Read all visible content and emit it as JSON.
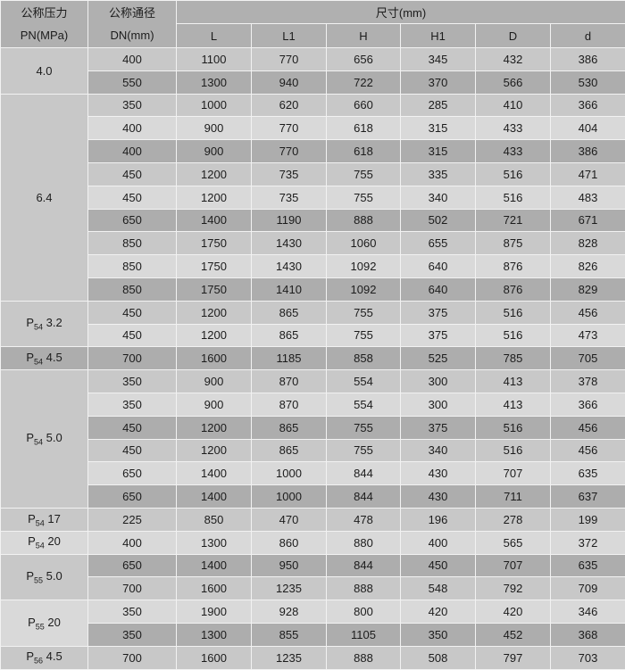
{
  "colors": {
    "header_bg": "#b0b0b0",
    "row_light": "#d9d9d9",
    "row_medium": "#c8c8c8",
    "row_dark": "#adadad",
    "gridline": "#f2f2f2",
    "text": "#1c1c1c"
  },
  "header": {
    "pressure_line1": "公称压力",
    "pressure_line2": "PN(MPa)",
    "diameter_line1": "公称通径",
    "diameter_line2": "DN(mm)",
    "size_label": "尺寸(mm)",
    "size_columns": [
      "L",
      "L1",
      "H",
      "H1",
      "D",
      "d"
    ]
  },
  "groups": [
    {
      "pn": {
        "text": "4.0"
      },
      "shade": "m",
      "rows": [
        {
          "dn": "400",
          "shade": "m",
          "dims": [
            "1100",
            "770",
            "656",
            "345",
            "432",
            "386"
          ]
        },
        {
          "dn": "550",
          "shade": "d",
          "dims": [
            "1300",
            "940",
            "722",
            "370",
            "566",
            "530"
          ]
        }
      ]
    },
    {
      "pn": {
        "text": "6.4"
      },
      "shade": "m",
      "rows": [
        {
          "dn": "350",
          "shade": "m",
          "dims": [
            "1000",
            "620",
            "660",
            "285",
            "410",
            "366"
          ]
        },
        {
          "dn": "400",
          "shade": "l",
          "dims": [
            "900",
            "770",
            "618",
            "315",
            "433",
            "404"
          ]
        },
        {
          "dn": "400",
          "shade": "d",
          "dims": [
            "900",
            "770",
            "618",
            "315",
            "433",
            "386"
          ]
        },
        {
          "dn": "450",
          "shade": "m",
          "dims": [
            "1200",
            "735",
            "755",
            "335",
            "516",
            "471"
          ]
        },
        {
          "dn": "450",
          "shade": "l",
          "dims": [
            "1200",
            "735",
            "755",
            "340",
            "516",
            "483"
          ]
        },
        {
          "dn": "650",
          "shade": "d",
          "dims": [
            "1400",
            "1190",
            "888",
            "502",
            "721",
            "671"
          ]
        },
        {
          "dn": "850",
          "shade": "m",
          "dims": [
            "1750",
            "1430",
            "1060",
            "655",
            "875",
            "828"
          ]
        },
        {
          "dn": "850",
          "shade": "l",
          "dims": [
            "1750",
            "1430",
            "1092",
            "640",
            "876",
            "826"
          ]
        },
        {
          "dn": "850",
          "shade": "d",
          "dims": [
            "1750",
            "1410",
            "1092",
            "640",
            "876",
            "829"
          ]
        }
      ]
    },
    {
      "pn": {
        "base": "P",
        "sub": "54",
        "rest": "3.2"
      },
      "shade": "m",
      "rows": [
        {
          "dn": "450",
          "shade": "m",
          "dims": [
            "1200",
            "865",
            "755",
            "375",
            "516",
            "456"
          ]
        },
        {
          "dn": "450",
          "shade": "l",
          "dims": [
            "1200",
            "865",
            "755",
            "375",
            "516",
            "473"
          ]
        }
      ]
    },
    {
      "pn": {
        "base": "P",
        "sub": "54",
        "rest": "4.5"
      },
      "shade": "d",
      "rows": [
        {
          "dn": "700",
          "shade": "d",
          "dims": [
            "1600",
            "1185",
            "858",
            "525",
            "785",
            "705"
          ]
        }
      ]
    },
    {
      "pn": {
        "base": "P",
        "sub": "54",
        "rest": "5.0"
      },
      "shade": "m",
      "rows": [
        {
          "dn": "350",
          "shade": "m",
          "dims": [
            "900",
            "870",
            "554",
            "300",
            "413",
            "378"
          ]
        },
        {
          "dn": "350",
          "shade": "l",
          "dims": [
            "900",
            "870",
            "554",
            "300",
            "413",
            "366"
          ]
        },
        {
          "dn": "450",
          "shade": "d",
          "dims": [
            "1200",
            "865",
            "755",
            "375",
            "516",
            "456"
          ]
        },
        {
          "dn": "450",
          "shade": "m",
          "dims": [
            "1200",
            "865",
            "755",
            "340",
            "516",
            "456"
          ]
        },
        {
          "dn": "650",
          "shade": "l",
          "dims": [
            "1400",
            "1000",
            "844",
            "430",
            "707",
            "635"
          ]
        },
        {
          "dn": "650",
          "shade": "d",
          "dims": [
            "1400",
            "1000",
            "844",
            "430",
            "711",
            "637"
          ]
        }
      ]
    },
    {
      "pn": {
        "base": "P",
        "sub": "54",
        "rest": "17"
      },
      "shade": "m",
      "rows": [
        {
          "dn": "225",
          "shade": "m",
          "dims": [
            "850",
            "470",
            "478",
            "196",
            "278",
            "199"
          ]
        }
      ]
    },
    {
      "pn": {
        "base": "P",
        "sub": "54",
        "rest": "20"
      },
      "shade": "l",
      "rows": [
        {
          "dn": "400",
          "shade": "l",
          "dims": [
            "1300",
            "860",
            "880",
            "400",
            "565",
            "372"
          ]
        }
      ]
    },
    {
      "pn": {
        "base": "P",
        "sub": "55",
        "rest": "5.0"
      },
      "shade": "m",
      "rows": [
        {
          "dn": "650",
          "shade": "d",
          "dims": [
            "1400",
            "950",
            "844",
            "450",
            "707",
            "635"
          ]
        },
        {
          "dn": "700",
          "shade": "m",
          "dims": [
            "1600",
            "1235",
            "888",
            "548",
            "792",
            "709"
          ]
        }
      ]
    },
    {
      "pn": {
        "base": "P",
        "sub": "55",
        "rest": "20"
      },
      "shade": "l",
      "rows": [
        {
          "dn": "350",
          "shade": "l",
          "dims": [
            "1900",
            "928",
            "800",
            "420",
            "420",
            "346"
          ]
        },
        {
          "dn": "350",
          "shade": "d",
          "dims": [
            "1300",
            "855",
            "1105",
            "350",
            "452",
            "368"
          ]
        }
      ]
    },
    {
      "pn": {
        "base": "P",
        "sub": "56",
        "rest": "4.5"
      },
      "shade": "m",
      "rows": [
        {
          "dn": "700",
          "shade": "m",
          "dims": [
            "1600",
            "1235",
            "888",
            "508",
            "797",
            "703"
          ]
        }
      ]
    }
  ]
}
